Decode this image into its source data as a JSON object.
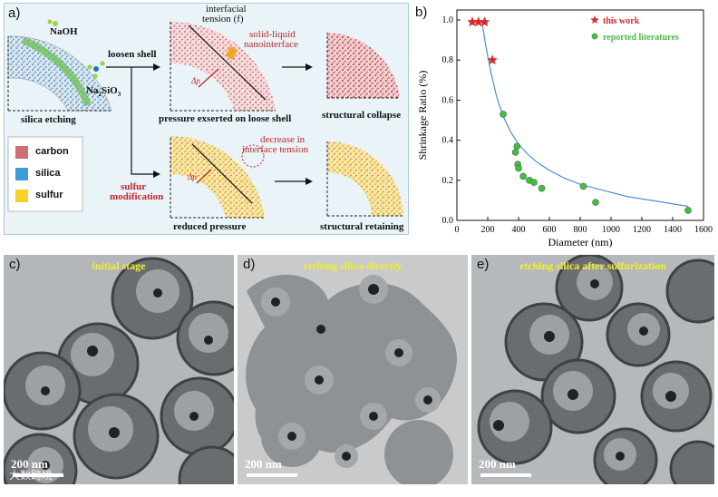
{
  "panel_a": {
    "label": "a)",
    "reagents": [
      "NaOH",
      "Na",
      "2",
      "SiO",
      "3"
    ],
    "silica_etching": "silica etching",
    "loosen_shell": "loosen shell",
    "interfacial_tension": [
      "interfacial",
      "tension (f)"
    ],
    "solid_liquid": [
      "solid-liquid",
      "nanointerface"
    ],
    "delta_p": "Δp",
    "pressure_loose": "pressure exserted on loose shell",
    "structural_collapse": "structural collapse",
    "sulfur_modification": [
      "sulfur",
      "modification"
    ],
    "decrease_tension": [
      "decrease in",
      "interface tension"
    ],
    "reduced_pressure": "reduced pressure",
    "structural_retaining": "structural retaining",
    "legend": [
      {
        "label": "carbon",
        "color": "#cd6f73"
      },
      {
        "label": "silica",
        "color": "#3c9ed2"
      },
      {
        "label": "sulfur",
        "color": "#f4d226"
      }
    ]
  },
  "panel_b": {
    "label": "b)",
    "chart_data": {
      "type": "scatter",
      "xlabel": "Diameter (nm)",
      "ylabel": "Shrinkage Ratio (%)",
      "xlim": [
        0,
        1600
      ],
      "ylim": [
        0,
        1.05
      ],
      "xticks": [
        0,
        200,
        400,
        600,
        800,
        1000,
        1200,
        1400,
        1600
      ],
      "yticks": [
        0.0,
        0.2,
        0.4,
        0.6,
        0.8,
        1.0
      ],
      "legend_position": "top-right",
      "series": [
        {
          "name": "this work",
          "marker": "star",
          "color": "#d42c2c",
          "x": [
            100,
            140,
            180,
            230
          ],
          "y": [
            0.99,
            0.99,
            0.99,
            0.8
          ]
        },
        {
          "name": "reported literatures",
          "marker": "circle",
          "color": "#4db84a",
          "x": [
            300,
            380,
            390,
            395,
            400,
            430,
            470,
            500,
            550,
            820,
            900,
            1500
          ],
          "y": [
            0.53,
            0.34,
            0.37,
            0.28,
            0.26,
            0.22,
            0.2,
            0.19,
            0.16,
            0.17,
            0.09,
            0.05
          ]
        }
      ],
      "fit_curve": {
        "color": "#4a90d9",
        "x": [
          160,
          190,
          220,
          260,
          300,
          350,
          400,
          460,
          520,
          600,
          700,
          800,
          950,
          1100,
          1300,
          1500
        ],
        "y": [
          1.0,
          0.86,
          0.74,
          0.61,
          0.52,
          0.44,
          0.38,
          0.33,
          0.29,
          0.25,
          0.21,
          0.18,
          0.15,
          0.12,
          0.095,
          0.07
        ]
      }
    }
  },
  "panel_c": {
    "label": "c)",
    "title": "initial stage",
    "scale": "200 nm"
  },
  "panel_d": {
    "label": "d)",
    "title": "etching silica directly",
    "scale": "200 nm"
  },
  "panel_e": {
    "label": "e)",
    "title": "etching silica after sulfurization",
    "scale": "200 nm"
  },
  "watermark": "大数跨境"
}
